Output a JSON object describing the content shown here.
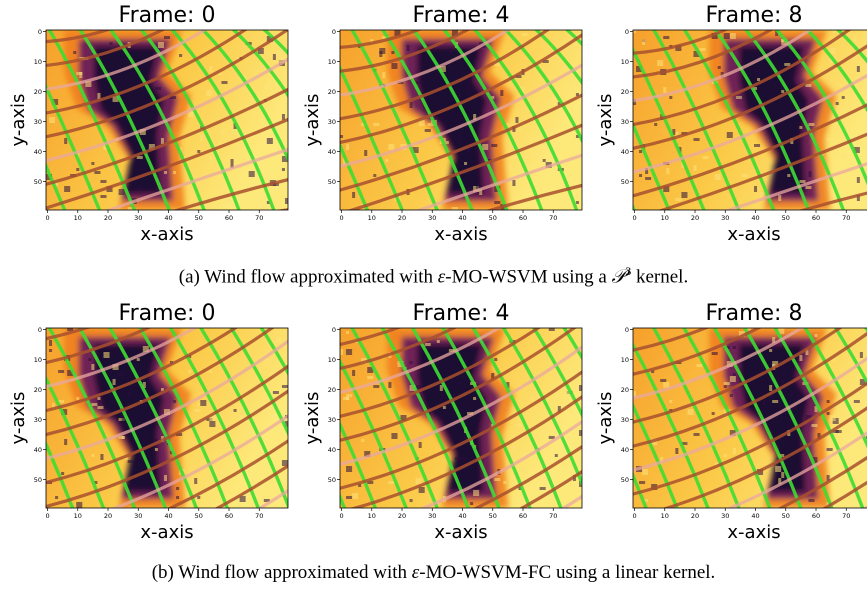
{
  "captions": {
    "a": {
      "prefix": "(a) Wind flow approximated with ",
      "math": "ε",
      "middle": "-MO-WSVM using a ",
      "kernel_sym": "𝒫",
      "kernel_exp": "3",
      "suffix": " kernel."
    },
    "b": {
      "prefix": "(b) Wind flow approximated with ",
      "math": "ε",
      "suffix": "-MO-WSVM-FC using a linear kernel."
    }
  },
  "chart_data": [
    {
      "type": "heatmap",
      "group": "a",
      "title": "Frame: 0",
      "xlabel": "x-axis",
      "ylabel": "y-axis",
      "xticks": [
        0,
        10,
        20,
        30,
        40,
        50,
        60,
        70
      ],
      "yticks": [
        0,
        10,
        20,
        30,
        40,
        50
      ],
      "xlim": [
        0,
        80
      ],
      "ylim": [
        60,
        0
      ],
      "colors": {
        "field_low": "#1b0b33",
        "field_high": "#fde97a",
        "field_mid": "#f78a1a",
        "flow_green": "#3ddc32",
        "flow_brown": "#a8502e",
        "flow_pink": "#e9a8a0"
      }
    },
    {
      "type": "heatmap",
      "group": "a",
      "title": "Frame: 4",
      "xlabel": "x-axis",
      "ylabel": "y-axis",
      "xticks": [
        0,
        10,
        20,
        30,
        40,
        50,
        60,
        70
      ],
      "yticks": [
        0,
        10,
        20,
        30,
        40,
        50
      ],
      "xlim": [
        0,
        80
      ],
      "ylim": [
        60,
        0
      ]
    },
    {
      "type": "heatmap",
      "group": "a",
      "title": "Frame: 8",
      "xlabel": "x-axis",
      "ylabel": "y-axis",
      "xticks": [
        0,
        10,
        20,
        30,
        40,
        50,
        60,
        70
      ],
      "yticks": [
        0,
        10,
        20,
        30,
        40,
        50
      ],
      "xlim": [
        0,
        80
      ],
      "ylim": [
        60,
        0
      ]
    },
    {
      "type": "heatmap",
      "group": "b",
      "title": "Frame: 0",
      "xlabel": "x-axis",
      "ylabel": "y-axis",
      "xticks": [
        0,
        10,
        20,
        30,
        40,
        50,
        60,
        70
      ],
      "yticks": [
        0,
        10,
        20,
        30,
        40,
        50
      ],
      "xlim": [
        0,
        80
      ],
      "ylim": [
        60,
        0
      ]
    },
    {
      "type": "heatmap",
      "group": "b",
      "title": "Frame: 4",
      "xlabel": "x-axis",
      "ylabel": "y-axis",
      "xticks": [
        0,
        10,
        20,
        30,
        40,
        50,
        60,
        70
      ],
      "yticks": [
        0,
        10,
        20,
        30,
        40,
        50
      ],
      "xlim": [
        0,
        80
      ],
      "ylim": [
        60,
        0
      ]
    },
    {
      "type": "heatmap",
      "group": "b",
      "title": "Frame: 8",
      "xlabel": "x-axis",
      "ylabel": "y-axis",
      "xticks": [
        0,
        10,
        20,
        30,
        40,
        50,
        60,
        70
      ],
      "yticks": [
        0,
        10,
        20,
        30,
        40,
        50
      ],
      "xlim": [
        0,
        80
      ],
      "ylim": [
        60,
        0
      ]
    }
  ]
}
